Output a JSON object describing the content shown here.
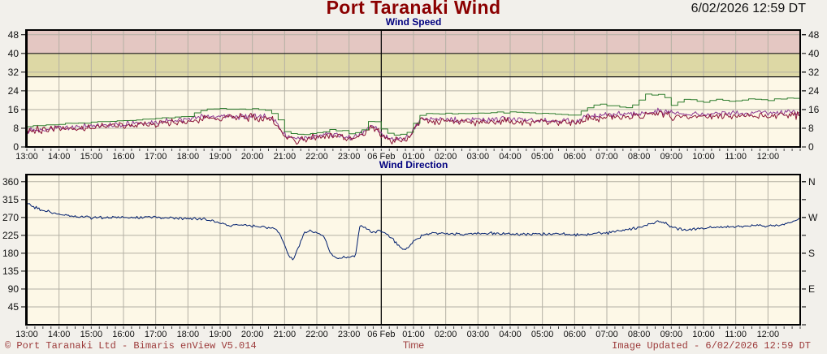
{
  "header": {
    "title": "Port Taranaki Wind",
    "timestamp": "6/02/2026 12:59 DT"
  },
  "footer": {
    "copyright": "© Port Taranaki Ltd - Bimaris enView V5.014",
    "time_axis_label": "Time",
    "updated": "Image Updated - 6/02/2026 12:59 DT"
  },
  "colors": {
    "page_bg": "#f2f0eb",
    "plot_bg": "#fdf8e7",
    "band_caution": "#ddd8a5",
    "band_danger": "#e4c7c2",
    "grid": "#b4b0a4",
    "frame": "#000000",
    "title_text": "#8b0000",
    "subtitle_text": "#00007f",
    "timestamp_text": "#111111",
    "footer_text": "#9c3a3a",
    "gust_line": "#2f7d2f",
    "mean_purple_line": "#8e3a94",
    "mean_maroon_line": "#8b1538",
    "direction_line": "#001f6e"
  },
  "chart_data": [
    {
      "type": "line",
      "title": "Wind Speed",
      "xlabel": "Time",
      "ylabel": "",
      "ylim": [
        0,
        50
      ],
      "x_minutes_total": 1440,
      "x_labels": [
        "13:00",
        "14:00",
        "15:00",
        "16:00",
        "17:00",
        "18:00",
        "19:00",
        "20:00",
        "21:00",
        "22:00",
        "23:00",
        "06 Feb",
        "01:00",
        "02:00",
        "03:00",
        "04:00",
        "05:00",
        "06:00",
        "07:00",
        "08:00",
        "09:00",
        "10:00",
        "11:00",
        "12:00"
      ],
      "midnight_minute": 660,
      "grid_values": [
        8,
        16,
        24,
        32,
        48
      ],
      "boundaries": [
        30,
        40
      ],
      "bands": [
        {
          "from": 30,
          "to": 40,
          "color": "#ddd8a5"
        },
        {
          "from": 40,
          "to": 50,
          "color": "#e4c7c2"
        }
      ],
      "y_ticks_left": [
        {
          "v": 0,
          "t": "0"
        },
        {
          "v": 8,
          "t": "8"
        },
        {
          "v": 16,
          "t": "16"
        },
        {
          "v": 24,
          "t": "24"
        },
        {
          "v": 32,
          "t": "32"
        },
        {
          "v": 40,
          "t": "40"
        },
        {
          "v": 48,
          "t": "48"
        }
      ],
      "y_ticks_right": [
        {
          "v": 0,
          "t": "0"
        },
        {
          "v": 8,
          "t": "8"
        },
        {
          "v": 16,
          "t": "16"
        },
        {
          "v": 24,
          "t": "24"
        },
        {
          "v": 32,
          "t": "32"
        },
        {
          "v": 40,
          "t": "40"
        },
        {
          "v": 48,
          "t": "48"
        }
      ],
      "legend": "none",
      "grid": true,
      "series": [
        {
          "name": "wind-speed-mean-purple",
          "color": "#8e3a94",
          "style": "noisy",
          "noise": 1.3,
          "points": [
            [
              0,
              7.3
            ],
            [
              120,
              8.8
            ],
            [
              240,
              10.5
            ],
            [
              335,
              13
            ],
            [
              420,
              13.3
            ],
            [
              455,
              12.6
            ],
            [
              468,
              9.5
            ],
            [
              482,
              4.9
            ],
            [
              500,
              3.4
            ],
            [
              530,
              4
            ],
            [
              560,
              5.3
            ],
            [
              585,
              5
            ],
            [
              605,
              3.8
            ],
            [
              628,
              6
            ],
            [
              640,
              9.3
            ],
            [
              652,
              8.1
            ],
            [
              663,
              4.6
            ],
            [
              678,
              3.4
            ],
            [
              700,
              3.6
            ],
            [
              713,
              4.4
            ],
            [
              722,
              8.6
            ],
            [
              737,
              12.6
            ],
            [
              765,
              11.5
            ],
            [
              840,
              11.8
            ],
            [
              900,
              11.9
            ],
            [
              960,
              11.4
            ],
            [
              1020,
              11
            ],
            [
              1048,
              13.4
            ],
            [
              1080,
              13.8
            ],
            [
              1140,
              14.2
            ],
            [
              1178,
              15.4
            ],
            [
              1205,
              14.4
            ],
            [
              1260,
              14.2
            ],
            [
              1320,
              14.6
            ],
            [
              1380,
              14.6
            ],
            [
              1439,
              15
            ]
          ]
        },
        {
          "name": "wind-speed-mean-maroon",
          "color": "#8b1538",
          "style": "noisy",
          "noise": 1.7,
          "points": [
            [
              0,
              7
            ],
            [
              60,
              7.8
            ],
            [
              120,
              8.3
            ],
            [
              180,
              9
            ],
            [
              240,
              10
            ],
            [
              300,
              10.8
            ],
            [
              335,
              12.3
            ],
            [
              360,
              12.4
            ],
            [
              420,
              12.7
            ],
            [
              455,
              12.2
            ],
            [
              468,
              9
            ],
            [
              480,
              4.5
            ],
            [
              500,
              3
            ],
            [
              530,
              3.6
            ],
            [
              560,
              4.8
            ],
            [
              585,
              4.6
            ],
            [
              605,
              3.4
            ],
            [
              628,
              5.5
            ],
            [
              640,
              8.8
            ],
            [
              652,
              7.6
            ],
            [
              663,
              4.2
            ],
            [
              678,
              3
            ],
            [
              700,
              3.2
            ],
            [
              713,
              4
            ],
            [
              722,
              8
            ],
            [
              737,
              12
            ],
            [
              765,
              10.8
            ],
            [
              840,
              11
            ],
            [
              900,
              11
            ],
            [
              960,
              10.6
            ],
            [
              1020,
              10.2
            ],
            [
              1048,
              12.4
            ],
            [
              1080,
              12.8
            ],
            [
              1140,
              13
            ],
            [
              1178,
              14.2
            ],
            [
              1205,
              13.2
            ],
            [
              1260,
              13
            ],
            [
              1320,
              13.4
            ],
            [
              1380,
              13.4
            ],
            [
              1439,
              13.8
            ]
          ]
        },
        {
          "name": "wind-speed-gust-green",
          "color": "#2f7d2f",
          "style": "step",
          "noise": 0.5,
          "points": [
            [
              0,
              9
            ],
            [
              60,
              9.8
            ],
            [
              120,
              10.6
            ],
            [
              180,
              11.3
            ],
            [
              240,
              12.3
            ],
            [
              300,
              13.2
            ],
            [
              330,
              16.4
            ],
            [
              420,
              16.2
            ],
            [
              450,
              15.4
            ],
            [
              465,
              13
            ],
            [
              478,
              7
            ],
            [
              500,
              5.2
            ],
            [
              530,
              5.8
            ],
            [
              560,
              7.2
            ],
            [
              585,
              6.8
            ],
            [
              605,
              5.6
            ],
            [
              628,
              7.8
            ],
            [
              638,
              11.6
            ],
            [
              652,
              10.4
            ],
            [
              663,
              6.8
            ],
            [
              678,
              5.2
            ],
            [
              700,
              5.4
            ],
            [
              713,
              6.6
            ],
            [
              722,
              11
            ],
            [
              737,
              14.6
            ],
            [
              765,
              14
            ],
            [
              840,
              14.6
            ],
            [
              900,
              15
            ],
            [
              960,
              14.2
            ],
            [
              1020,
              13.6
            ],
            [
              1048,
              17.6
            ],
            [
              1070,
              18.2
            ],
            [
              1120,
              16.6
            ],
            [
              1152,
              22.6
            ],
            [
              1185,
              22
            ],
            [
              1200,
              18.2
            ],
            [
              1228,
              20.6
            ],
            [
              1255,
              19
            ],
            [
              1285,
              20.2
            ],
            [
              1315,
              19.4
            ],
            [
              1345,
              20.6
            ],
            [
              1380,
              20
            ],
            [
              1410,
              21
            ],
            [
              1439,
              20.8
            ]
          ]
        }
      ]
    },
    {
      "type": "line",
      "title": "Wind Direction",
      "xlabel": "Time",
      "ylabel": "",
      "ylim": [
        0,
        378
      ],
      "x_minutes_total": 1440,
      "x_labels": [
        "13:00",
        "14:00",
        "15:00",
        "16:00",
        "17:00",
        "18:00",
        "19:00",
        "20:00",
        "21:00",
        "22:00",
        "23:00",
        "06 Feb",
        "01:00",
        "02:00",
        "03:00",
        "04:00",
        "05:00",
        "06:00",
        "07:00",
        "08:00",
        "09:00",
        "10:00",
        "11:00",
        "12:00"
      ],
      "midnight_minute": 660,
      "grid_values": [
        45,
        90,
        135,
        180,
        225,
        270,
        315,
        360
      ],
      "boundaries": [],
      "bands": [],
      "y_ticks_left": [
        {
          "v": 45,
          "t": "45"
        },
        {
          "v": 90,
          "t": "90"
        },
        {
          "v": 135,
          "t": "135"
        },
        {
          "v": 180,
          "t": "180"
        },
        {
          "v": 225,
          "t": "225"
        },
        {
          "v": 270,
          "t": "270"
        },
        {
          "v": 315,
          "t": "315"
        },
        {
          "v": 360,
          "t": "360"
        }
      ],
      "y_ticks_right": [
        {
          "v": 90,
          "t": "E"
        },
        {
          "v": 180,
          "t": "S"
        },
        {
          "v": 270,
          "t": "W"
        },
        {
          "v": 360,
          "t": "N"
        }
      ],
      "legend": "none",
      "grid": true,
      "series": [
        {
          "name": "wind-direction-navy",
          "color": "#001f6e",
          "style": "noisy",
          "noise": 4,
          "points": [
            [
              0,
              305
            ],
            [
              20,
              292
            ],
            [
              55,
              280
            ],
            [
              90,
              273
            ],
            [
              120,
              270
            ],
            [
              180,
              270
            ],
            [
              240,
              271
            ],
            [
              290,
              268
            ],
            [
              330,
              266
            ],
            [
              355,
              258
            ],
            [
              375,
              250
            ],
            [
              395,
              252
            ],
            [
              420,
              250
            ],
            [
              440,
              247
            ],
            [
              465,
              240
            ],
            [
              478,
              208
            ],
            [
              488,
              172
            ],
            [
              495,
              162
            ],
            [
              505,
              193
            ],
            [
              515,
              228
            ],
            [
              525,
              237
            ],
            [
              540,
              231
            ],
            [
              553,
              224
            ],
            [
              565,
              182
            ],
            [
              578,
              168
            ],
            [
              598,
              170
            ],
            [
              612,
              173
            ],
            [
              620,
              248
            ],
            [
              632,
              243
            ],
            [
              645,
              231
            ],
            [
              658,
              237
            ],
            [
              670,
              228
            ],
            [
              683,
              214
            ],
            [
              695,
              193
            ],
            [
              705,
              189
            ],
            [
              715,
              201
            ],
            [
              727,
              216
            ],
            [
              740,
              227
            ],
            [
              760,
              231
            ],
            [
              800,
              228
            ],
            [
              860,
              230
            ],
            [
              920,
              228
            ],
            [
              980,
              229
            ],
            [
              1020,
              226
            ],
            [
              1080,
              231
            ],
            [
              1110,
              239
            ],
            [
              1140,
              244
            ],
            [
              1168,
              257
            ],
            [
              1183,
              261
            ],
            [
              1200,
              246
            ],
            [
              1230,
              238
            ],
            [
              1262,
              243
            ],
            [
              1290,
              247
            ],
            [
              1320,
              247
            ],
            [
              1350,
              250
            ],
            [
              1380,
              248
            ],
            [
              1410,
              252
            ],
            [
              1430,
              261
            ],
            [
              1439,
              266
            ]
          ]
        }
      ]
    }
  ]
}
